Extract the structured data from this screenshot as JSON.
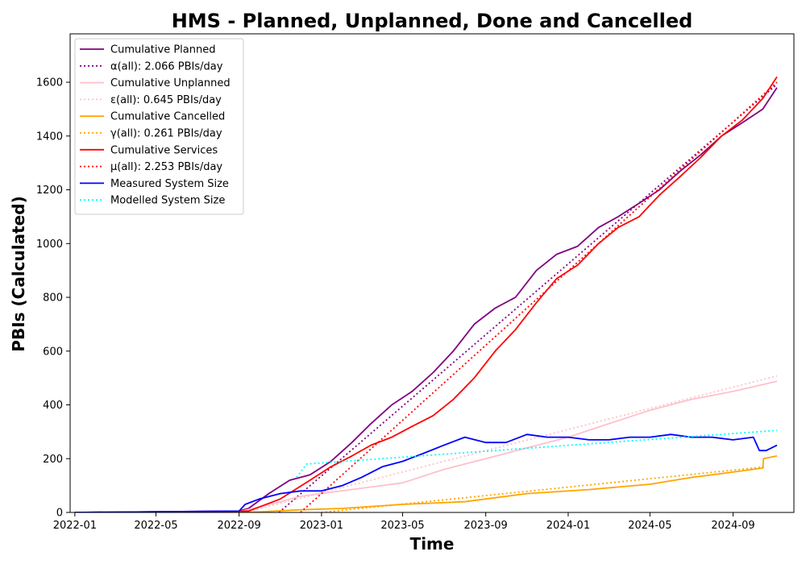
{
  "chart_data": {
    "type": "line",
    "title": "HMS - Planned, Unplanned, Done  and Cancelled",
    "xlabel": "Time",
    "ylabel": "PBIs (Calculated)",
    "xlim": [
      "2021-12-25",
      "2024-11-30"
    ],
    "ylim": [
      0,
      1780
    ],
    "x_ticks": [
      "2022-01",
      "2022-05",
      "2022-09",
      "2023-01",
      "2023-05",
      "2023-09",
      "2024-01",
      "2024-05",
      "2024-09"
    ],
    "y_ticks": [
      0,
      200,
      400,
      600,
      800,
      1000,
      1200,
      1400,
      1600
    ],
    "grid": false,
    "legend_position": "top-left",
    "series": [
      {
        "name": "Cumulative Planned",
        "color": "#800080",
        "style": "solid",
        "x": [
          "2022-01-01",
          "2022-09-01",
          "2022-09-15",
          "2022-10-15",
          "2022-11-15",
          "2022-12-15",
          "2023-01-15",
          "2023-02-15",
          "2023-03-15",
          "2023-04-15",
          "2023-05-15",
          "2023-06-15",
          "2023-07-15",
          "2023-08-15",
          "2023-09-15",
          "2023-10-15",
          "2023-11-15",
          "2023-12-15",
          "2024-01-15",
          "2024-02-15",
          "2024-03-15",
          "2024-04-15",
          "2024-05-15",
          "2024-06-15",
          "2024-07-15",
          "2024-08-15",
          "2024-09-15",
          "2024-10-15",
          "2024-11-05"
        ],
        "y": [
          0,
          5,
          15,
          70,
          120,
          140,
          190,
          260,
          330,
          400,
          450,
          520,
          600,
          700,
          760,
          800,
          900,
          960,
          990,
          1060,
          1100,
          1150,
          1200,
          1270,
          1330,
          1400,
          1450,
          1500,
          1580
        ]
      },
      {
        "name": "α(all): 2.066 PBIs/day",
        "color": "#800080",
        "style": "dotted",
        "x": [
          "2022-10-30",
          "2024-11-05"
        ],
        "y": [
          0,
          1592
        ]
      },
      {
        "name": "Cumulative Unplanned",
        "color": "#ffc0cb",
        "style": "solid",
        "x": [
          "2022-01-01",
          "2022-09-01",
          "2022-10-01",
          "2022-11-01",
          "2022-12-01",
          "2023-01-01",
          "2023-03-01",
          "2023-05-01",
          "2023-07-01",
          "2023-09-01",
          "2023-11-01",
          "2024-01-01",
          "2024-03-01",
          "2024-05-01",
          "2024-07-01",
          "2024-09-01",
          "2024-11-05"
        ],
        "y": [
          0,
          3,
          20,
          40,
          60,
          70,
          90,
          110,
          160,
          200,
          240,
          280,
          330,
          380,
          420,
          450,
          488
        ]
      },
      {
        "name": "ε(all): 0.645 PBIs/day",
        "color": "#ffc0cb",
        "style": "dotted",
        "x": [
          "2022-09-10",
          "2024-11-05"
        ],
        "y": [
          0,
          508
        ]
      },
      {
        "name": "Cumulative Cancelled",
        "color": "#ffa500",
        "style": "solid",
        "x": [
          "2022-01-01",
          "2022-10-01",
          "2022-12-01",
          "2023-02-01",
          "2023-05-01",
          "2023-08-01",
          "2023-11-01",
          "2024-02-01",
          "2024-05-01",
          "2024-07-01",
          "2024-09-01",
          "2024-10-15",
          "2024-10-16",
          "2024-11-05"
        ],
        "y": [
          0,
          2,
          10,
          15,
          30,
          40,
          70,
          85,
          105,
          130,
          150,
          165,
          200,
          210
        ]
      },
      {
        "name": "γ(all): 0.261 PBIs/day",
        "color": "#ffa500",
        "style": "dotted",
        "x": [
          "2023-01-01",
          "2024-10-20"
        ],
        "y": [
          0,
          170
        ]
      },
      {
        "name": "Cumulative Services",
        "color": "#ff0000",
        "style": "solid",
        "x": [
          "2022-01-01",
          "2022-09-15",
          "2022-11-01",
          "2022-12-15",
          "2023-01-15",
          "2023-02-15",
          "2023-03-15",
          "2023-04-15",
          "2023-05-15",
          "2023-06-15",
          "2023-07-15",
          "2023-08-15",
          "2023-09-15",
          "2023-10-15",
          "2023-11-15",
          "2023-12-15",
          "2024-01-15",
          "2024-02-15",
          "2024-03-15",
          "2024-04-15",
          "2024-05-15",
          "2024-06-15",
          "2024-07-15",
          "2024-08-15",
          "2024-09-15",
          "2024-10-15",
          "2024-11-05"
        ],
        "y": [
          0,
          5,
          50,
          120,
          170,
          210,
          250,
          280,
          320,
          360,
          420,
          500,
          600,
          680,
          780,
          870,
          920,
          1000,
          1060,
          1100,
          1180,
          1250,
          1320,
          1400,
          1460,
          1540,
          1620
        ]
      },
      {
        "name": "μ(all): 2.253 PBIs/day",
        "color": "#ff0000",
        "style": "dotted",
        "x": [
          "2022-12-01",
          "2024-11-05"
        ],
        "y": [
          0,
          1600
        ]
      },
      {
        "name": "Measured System Size",
        "color": "#0000ff",
        "style": "solid",
        "x": [
          "2022-01-01",
          "2022-09-01",
          "2022-09-10",
          "2022-10-01",
          "2022-11-01",
          "2022-12-01",
          "2023-01-01",
          "2023-02-01",
          "2023-03-01",
          "2023-04-01",
          "2023-05-01",
          "2023-06-01",
          "2023-07-01",
          "2023-08-01",
          "2023-09-01",
          "2023-10-01",
          "2023-11-01",
          "2023-12-01",
          "2024-01-01",
          "2024-02-01",
          "2024-03-01",
          "2024-04-01",
          "2024-05-01",
          "2024-06-01",
          "2024-07-01",
          "2024-08-01",
          "2024-09-01",
          "2024-10-01",
          "2024-10-10",
          "2024-10-20",
          "2024-11-05"
        ],
        "y": [
          0,
          5,
          30,
          50,
          70,
          80,
          80,
          100,
          130,
          170,
          190,
          220,
          250,
          280,
          260,
          260,
          290,
          280,
          280,
          270,
          270,
          280,
          280,
          290,
          280,
          280,
          270,
          280,
          230,
          230,
          250
        ]
      },
      {
        "name": "Modelled System Size",
        "color": "#00ffff",
        "style": "dotted",
        "x": [
          "2022-11-25",
          "2022-12-10",
          "2024-11-05"
        ],
        "y": [
          130,
          180,
          305
        ]
      }
    ]
  }
}
